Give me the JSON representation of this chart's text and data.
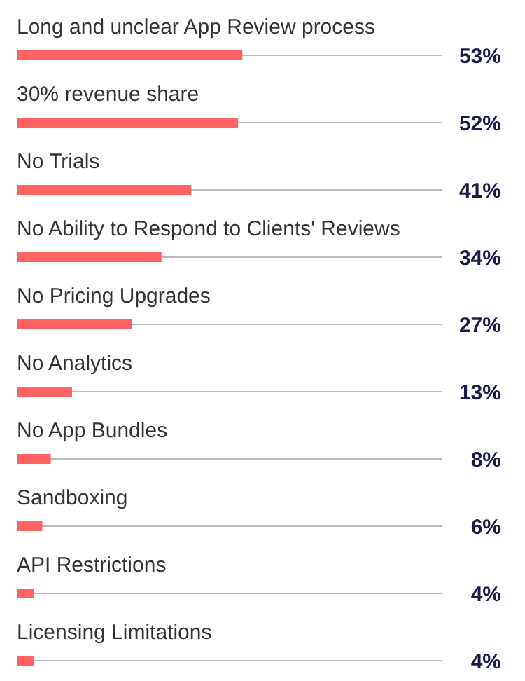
{
  "chart_data": {
    "type": "bar",
    "orientation": "horizontal",
    "categories": [
      "Long and unclear App Review process",
      "30% revenue share",
      "No Trials",
      "No Ability to Respond to Clients' Reviews",
      "No Pricing Upgrades",
      "No Analytics",
      "No App Bundles",
      "Sandboxing",
      "API Restrictions",
      "Licensing Limitations"
    ],
    "values": [
      53,
      52,
      41,
      34,
      27,
      13,
      8,
      6,
      4,
      4
    ],
    "value_labels": [
      "53%",
      "52%",
      "41%",
      "34%",
      "27%",
      "13%",
      "8%",
      "6%",
      "4%",
      "4%"
    ],
    "color": "#ff6363",
    "xlim": [
      0,
      100
    ]
  }
}
